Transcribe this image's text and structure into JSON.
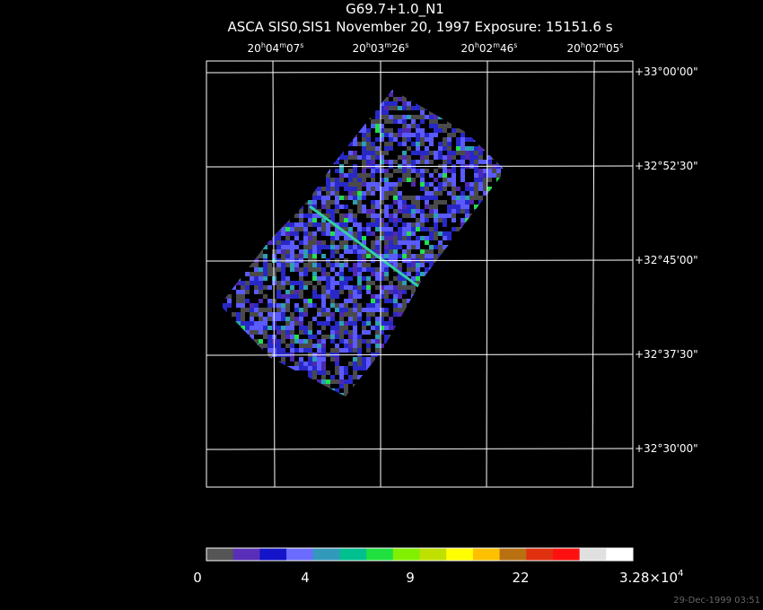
{
  "header": {
    "title": "G69.7+1.0_N1",
    "subtitle": "ASCA SIS0,SIS1 November 20, 1997 Exposure: 15151.6 s"
  },
  "ra_labels": [
    [
      "20",
      "h",
      "04",
      "m",
      "07",
      "s"
    ],
    [
      "20",
      "h",
      "03",
      "m",
      "26",
      "s"
    ],
    [
      "20",
      "h",
      "02",
      "m",
      "46",
      "s"
    ],
    [
      "20",
      "h",
      "02",
      "m",
      "05",
      "s"
    ]
  ],
  "dec_labels": [
    "+33°00'00\"",
    "+32°52'30\"",
    "+32°45'00\"",
    "+32°37'30\"",
    "+32°30'00\""
  ],
  "colorbar_labels": [
    "0",
    "4",
    "9",
    "22",
    [
      "3.28×10",
      "4"
    ]
  ],
  "timestamp": "29-Dec-1999 03:51"
}
